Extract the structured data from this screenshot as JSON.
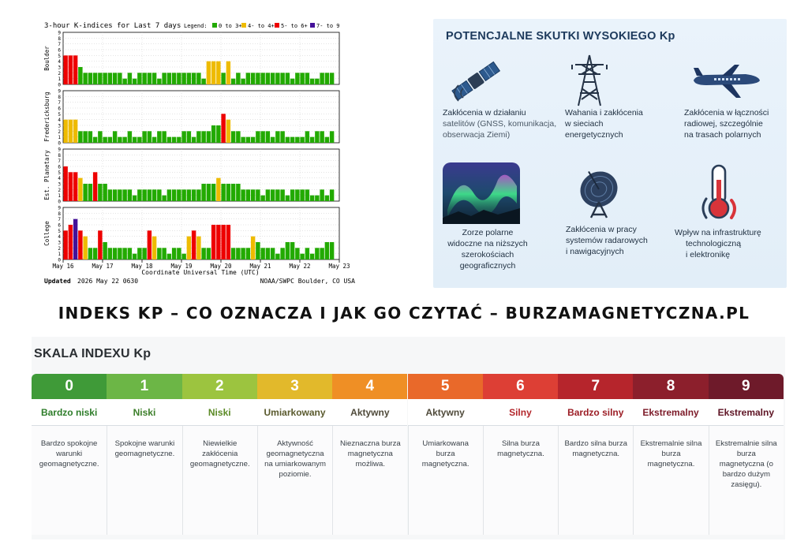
{
  "chart": {
    "title": "3-hour K-indices for Last 7 days",
    "legend_label": "Legend:",
    "legend": [
      {
        "label": "0 to 3+",
        "color": "#22aa00"
      },
      {
        "label": "4- to 4+",
        "color": "#eebb00"
      },
      {
        "label": "5- to 6+",
        "color": "#ee0000"
      },
      {
        "label": "7- to 9",
        "color": "#441199"
      }
    ],
    "y_ticks": [
      "0",
      "1",
      "2",
      "3",
      "4",
      "5",
      "6",
      "7",
      "8",
      "9"
    ],
    "x_ticks": [
      "May 16",
      "May 17",
      "May 18",
      "May 19",
      "May 20",
      "May 21",
      "May 22",
      "May 23"
    ],
    "x_axis_label": "Coordinate Universal Time (UTC)",
    "updated_label": "Updated",
    "updated_value": "2026 May 22 0630",
    "source": "NOAA/SWPC Boulder, CO USA"
  },
  "chart_data": {
    "type": "bar",
    "title": "3-hour K-indices for Last 7 days",
    "xlabel": "Coordinate Universal Time (UTC)",
    "ylim": [
      0,
      9
    ],
    "bars_per_day": 8,
    "x_range": [
      "May 16",
      "May 23"
    ],
    "color_thresholds": [
      {
        "range": "0 to 3+",
        "color": "#22aa00"
      },
      {
        "range": "4- to 4+",
        "color": "#eebb00"
      },
      {
        "range": "5- to 6+",
        "color": "#ee0000"
      },
      {
        "range": "7- to 9",
        "color": "#441199"
      }
    ],
    "series": [
      {
        "name": "Boulder",
        "values": [
          5,
          5,
          5,
          3,
          2,
          2,
          2,
          2,
          2,
          2,
          2,
          2,
          1,
          2,
          1,
          2,
          2,
          2,
          2,
          1,
          2,
          2,
          2,
          2,
          2,
          2,
          2,
          2,
          1,
          4,
          4,
          4,
          2,
          4,
          1,
          2,
          1,
          2,
          2,
          2,
          2,
          2,
          2,
          2,
          2,
          2,
          1,
          2,
          2,
          2,
          1,
          1,
          2,
          2,
          2
        ]
      },
      {
        "name": "Fredericksburg",
        "values": [
          4,
          4,
          4,
          2,
          2,
          2,
          1,
          2,
          1,
          1,
          2,
          1,
          1,
          2,
          1,
          1,
          2,
          2,
          1,
          2,
          2,
          1,
          1,
          1,
          2,
          2,
          1,
          2,
          2,
          2,
          3,
          3,
          5,
          4,
          2,
          2,
          1,
          1,
          1,
          2,
          2,
          2,
          1,
          2,
          2,
          1,
          1,
          1,
          1,
          2,
          1,
          2,
          2,
          1,
          2
        ]
      },
      {
        "name": "Est. Planetary",
        "values": [
          6,
          5,
          5,
          4,
          3,
          3,
          5,
          3,
          3,
          2,
          2,
          2,
          2,
          2,
          1,
          2,
          2,
          2,
          2,
          2,
          1,
          2,
          2,
          2,
          2,
          2,
          2,
          2,
          3,
          3,
          3,
          4,
          3,
          3,
          3,
          3,
          2,
          2,
          2,
          2,
          1,
          2,
          2,
          2,
          2,
          1,
          2,
          2,
          2,
          2,
          1,
          1,
          2,
          1,
          2
        ]
      },
      {
        "name": "College",
        "values": [
          5,
          6,
          7,
          5,
          4,
          2,
          2,
          5,
          3,
          2,
          2,
          2,
          2,
          2,
          1,
          2,
          2,
          5,
          4,
          2,
          2,
          1,
          2,
          2,
          1,
          4,
          5,
          4,
          2,
          2,
          6,
          6,
          6,
          6,
          2,
          2,
          2,
          2,
          4,
          3,
          2,
          2,
          2,
          1,
          2,
          3,
          3,
          2,
          1,
          2,
          1,
          2,
          2,
          3,
          3
        ]
      }
    ]
  },
  "effects": {
    "title": "POTENCJALNE SKUTKI WYSOKIEGO Kp",
    "items": [
      {
        "icon": "satellite-icon",
        "line1": "Zakłócenia w działaniu",
        "line2": "satelitów (GNSS, komunikacja,",
        "line3": "obserwacja Ziemi)"
      },
      {
        "icon": "power-tower-icon",
        "line1": "Wahania i zakłócenia",
        "line2": "w sieciach",
        "line3": "energetycznych"
      },
      {
        "icon": "airplane-icon",
        "line1": "Zakłócenia w łączności",
        "line2": "radiowej, szczególnie",
        "line3": "na trasach polarnych"
      },
      {
        "icon": "aurora-icon",
        "line1": "Zorze polarne",
        "line2": "widoczne na niższych",
        "line3": "szerokościach geograficznych"
      },
      {
        "icon": "radar-dish-icon",
        "line1": "Zakłócenia w pracy",
        "line2": "systemów radarowych",
        "line3": "i nawigacyjnych"
      },
      {
        "icon": "thermometer-icon",
        "line1": "Wpływ na infrastrukturę",
        "line2": "technologiczną",
        "line3": "i elektronikę"
      }
    ]
  },
  "headline": "INDEKS KP – CO OZNACZA I JAK GO CZYTAĆ – BURZAMAGNETYCZNA.PL",
  "scale": {
    "title": "SKALA INDEXU Kp",
    "levels": [
      {
        "num": "0",
        "label": "Bardzo niski",
        "color": "#3f9a38",
        "label_color": "#2e7d2a",
        "desc": "Bardzo spokojne warunki geomagnetyczne."
      },
      {
        "num": "1",
        "label": "Niski",
        "color": "#6cb646",
        "label_color": "#3c7f2a",
        "desc": "Spokojne warunki geomagnetyczne."
      },
      {
        "num": "2",
        "label": "Niski",
        "color": "#9cc43f",
        "label_color": "#5b8a25",
        "desc": "Niewielkie zakłócenia geomagnetyczne."
      },
      {
        "num": "3",
        "label": "Umiarkowany",
        "color": "#e2b92b",
        "label_color": "#5a5a2e",
        "desc": "Aktywność geomagnetyczna na umiarkowanym poziomie."
      },
      {
        "num": "4",
        "label": "Aktywny",
        "color": "#ef8f25",
        "label_color": "#4f4a3a",
        "desc": "Nieznaczna burza magnetyczna możliwa."
      },
      {
        "num": "5",
        "label": "Aktywny",
        "color": "#e9692a",
        "label_color": "#4f4a3a",
        "desc": "Umiarkowana burza magnetyczna."
      },
      {
        "num": "6",
        "label": "Silny",
        "color": "#dd3f35",
        "label_color": "#b3262b",
        "desc": "Silna burza magnetyczna."
      },
      {
        "num": "7",
        "label": "Bardzo silny",
        "color": "#b6252c",
        "label_color": "#9c1e26",
        "desc": "Bardzo silna burza magnetyczna."
      },
      {
        "num": "8",
        "label": "Ekstremalny",
        "color": "#8c1f2c",
        "label_color": "#7c1a28",
        "desc": "Ekstremalnie silna burza magnetyczna."
      },
      {
        "num": "9",
        "label": "Ekstremalny",
        "color": "#6e1a2a",
        "label_color": "#5e1424",
        "desc": "Ekstremalnie silna burza magnetyczna (o bardzo dużym zasięgu)."
      }
    ]
  }
}
